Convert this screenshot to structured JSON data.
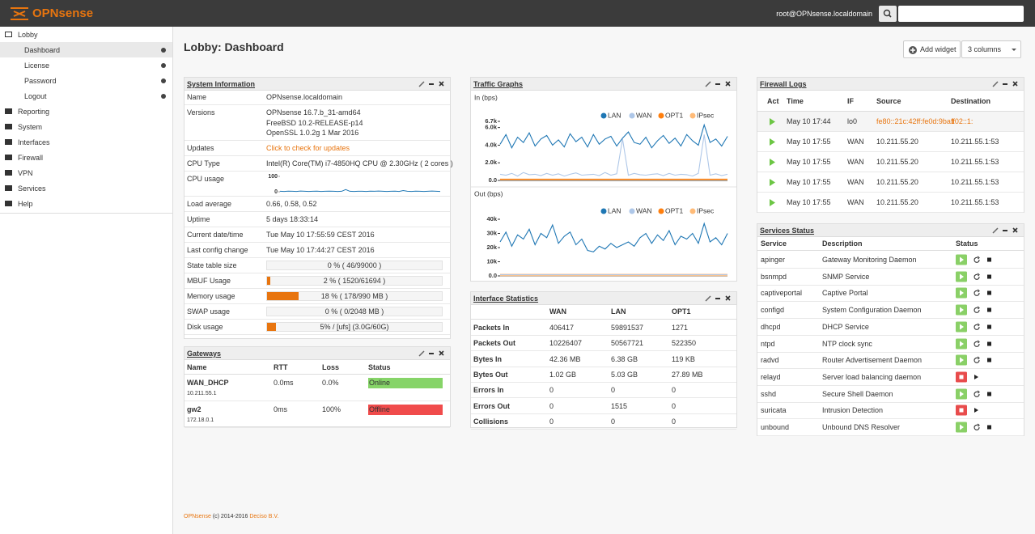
{
  "header": {
    "logo": "OPNsense",
    "user": "root@OPNsense.localdomain"
  },
  "sidebar": {
    "sections": [
      {
        "label": "Lobby",
        "items": [
          "Dashboard",
          "License",
          "Password",
          "Logout"
        ],
        "active": 0
      },
      {
        "label": "Reporting"
      },
      {
        "label": "System"
      },
      {
        "label": "Interfaces"
      },
      {
        "label": "Firewall"
      },
      {
        "label": "VPN"
      },
      {
        "label": "Services"
      },
      {
        "label": "Help"
      }
    ]
  },
  "page": {
    "title": "Lobby: Dashboard",
    "add_widget": "Add widget",
    "columns": "3 columns"
  },
  "system_information": {
    "title": "System Information",
    "rows": [
      {
        "label": "Name",
        "value": "OPNsense.localdomain"
      },
      {
        "label": "Versions",
        "value": [
          "OPNsense 16.7.b_31-amd64",
          "FreeBSD 10.2-RELEASE-p14",
          "OpenSSL 1.0.2g 1 Mar 2016"
        ]
      },
      {
        "label": "Updates",
        "value": "Click to check for updates",
        "link": true
      },
      {
        "label": "CPU Type",
        "value": "Intel(R) Core(TM) i7-4850HQ CPU @ 2.30GHz ( 2 cores )"
      },
      {
        "label": "CPU usage",
        "chart": {
          "ylim": [
            0,
            100
          ],
          "yticks": [
            0,
            100
          ],
          "values": [
            3,
            2,
            4,
            3,
            2,
            5,
            3,
            2,
            3,
            4,
            2,
            3,
            4,
            3,
            2,
            3,
            14,
            3,
            2,
            3,
            3,
            2,
            4,
            3,
            5,
            3,
            2,
            3,
            4,
            2,
            8,
            3,
            2,
            4,
            3,
            2,
            3,
            5,
            3,
            2
          ]
        }
      },
      {
        "label": "Load average",
        "value": "0.66, 0.58, 0.52"
      },
      {
        "label": "Uptime",
        "value": "5 days 18:33:14"
      },
      {
        "label": "Current date/time",
        "value": "Tue May 10 17:55:59 CEST 2016"
      },
      {
        "label": "Last config change",
        "value": "Tue May 10 17:44:27 CEST 2016"
      },
      {
        "label": "State table size",
        "meter": {
          "value": 0,
          "label": "0 % ( 46/99000 )"
        }
      },
      {
        "label": "MBUF Usage",
        "meter": {
          "value": 2,
          "label": "2 % ( 1520/61694 )"
        }
      },
      {
        "label": "Memory usage",
        "meter": {
          "value": 18,
          "label": "18 % ( 178/990 MB )"
        }
      },
      {
        "label": "SWAP usage",
        "meter": {
          "value": 0,
          "label": "0 % ( 0/2048 MB )"
        }
      },
      {
        "label": "Disk usage",
        "meter": {
          "value": 5,
          "label": "5% / [ufs] (3.0G/60G)"
        }
      }
    ]
  },
  "gateways": {
    "title": "Gateways",
    "headers": [
      "Name",
      "RTT",
      "Loss",
      "Status"
    ],
    "rows": [
      {
        "name": "WAN_DHCP",
        "address": "10.211.55.1",
        "rtt": "0.0ms",
        "loss": "0.0%",
        "status": "Online",
        "color": "#86d468"
      },
      {
        "name": "gw2",
        "address": "172.18.0.1",
        "rtt": "0ms",
        "loss": "100%",
        "status": "Offline",
        "color": "#f04b4b"
      }
    ]
  },
  "traffic_graphs": {
    "title": "Traffic Graphs",
    "charts": [
      {
        "title": "In (bps)",
        "ylim": [
          0,
          6700
        ],
        "yticks": [
          {
            "value": 0,
            "label": "0.0"
          },
          {
            "value": 2000,
            "label": "2.0k"
          },
          {
            "value": 4000,
            "label": "4.0k"
          },
          {
            "value": 6000,
            "label": "6.0k"
          },
          {
            "value": 6700,
            "label": "6.7k"
          }
        ],
        "series": [
          {
            "name": "LAN",
            "color": "#1f77b4",
            "values": [
              4100,
              5200,
              3700,
              4900,
              4300,
              5400,
              3900,
              4700,
              5100,
              4000,
              4600,
              3800,
              5300,
              4400,
              4900,
              3800,
              5200,
              4100,
              4700,
              5000,
              3900,
              4800,
              5500,
              4300,
              4100,
              4900,
              3700,
              4500,
              5100,
              4200,
              4800,
              3900,
              5200,
              4500,
              4000,
              6300,
              4300,
              4700,
              3900,
              5000
            ]
          },
          {
            "name": "WAN",
            "color": "#aec7e8",
            "values": [
              700,
              600,
              800,
              500,
              900,
              650,
              700,
              550,
              800,
              600,
              750,
              500,
              700,
              850,
              600,
              650,
              700,
              550,
              900,
              600,
              750,
              4700,
              600,
              800,
              650,
              600,
              700,
              750,
              550,
              800,
              600,
              700,
              650,
              500,
              800,
              5200,
              600,
              750,
              550,
              700
            ]
          },
          {
            "name": "OPT1",
            "color": "#ff7f0e",
            "values": [
              150,
              150,
              150,
              150,
              150,
              150,
              150,
              150,
              150,
              150,
              150,
              150,
              150,
              150,
              150,
              150,
              150,
              150,
              150,
              150,
              150,
              150,
              150,
              150,
              150,
              150,
              150,
              150,
              150,
              150,
              150,
              150,
              150,
              150,
              150,
              150,
              150,
              150,
              150,
              150
            ]
          },
          {
            "name": "IPsec",
            "color": "#ffbb78",
            "values": [
              60,
              60,
              60,
              60,
              60,
              60,
              60,
              60,
              60,
              60,
              60,
              60,
              60,
              60,
              60,
              60,
              60,
              60,
              60,
              60,
              60,
              60,
              60,
              60,
              60,
              60,
              60,
              60,
              60,
              60,
              60,
              60,
              60,
              60,
              60,
              60,
              60,
              60,
              60,
              60
            ]
          }
        ]
      },
      {
        "title": "Out (bps)",
        "ylim": [
          0,
          40000
        ],
        "yticks": [
          {
            "value": 0,
            "label": "0.0"
          },
          {
            "value": 10000,
            "label": "10k"
          },
          {
            "value": 20000,
            "label": "20k"
          },
          {
            "value": 30000,
            "label": "30k"
          },
          {
            "value": 40000,
            "label": "40k"
          }
        ],
        "series": [
          {
            "name": "LAN",
            "color": "#1f77b4",
            "values": [
              24000,
              31000,
              21000,
              29000,
              26000,
              33000,
              22000,
              30000,
              27000,
              36000,
              23000,
              28000,
              31000,
              22000,
              26000,
              18000,
              17000,
              21000,
              19000,
              23000,
              20000,
              22000,
              24000,
              21000,
              27000,
              30000,
              23000,
              29000,
              25000,
              32000,
              22000,
              28000,
              26000,
              30000,
              23000,
              37000,
              24000,
              27000,
              22000,
              30000
            ]
          },
          {
            "name": "WAN",
            "color": "#aec7e8",
            "values": [
              800,
              800,
              800,
              800,
              800,
              800,
              800,
              800,
              800,
              800,
              800,
              800,
              800,
              800,
              800,
              800,
              800,
              800,
              800,
              800,
              800,
              800,
              800,
              800,
              800,
              800,
              800,
              800,
              800,
              800,
              800,
              800,
              800,
              800,
              800,
              800,
              800,
              800,
              800,
              800
            ]
          },
          {
            "name": "OPT1",
            "color": "#ff7f0e",
            "values": [
              1000,
              1000,
              1000,
              1000,
              1000,
              1000,
              1000,
              1000,
              1000,
              1000,
              1000,
              1000,
              1000,
              1000,
              1000,
              1000,
              1000,
              1000,
              1000,
              1000,
              1000,
              1000,
              1000,
              1000,
              1000,
              1000,
              1000,
              1000,
              1000,
              1000,
              1000,
              1000,
              1000,
              1000,
              1000,
              1000,
              1000,
              1000,
              1000,
              1000
            ]
          },
          {
            "name": "IPsec",
            "color": "#ffbb78",
            "values": [
              200,
              200,
              200,
              200,
              200,
              200,
              200,
              200,
              200,
              200,
              200,
              200,
              200,
              200,
              200,
              200,
              200,
              200,
              200,
              200,
              200,
              200,
              200,
              200,
              200,
              200,
              200,
              200,
              200,
              200,
              200,
              200,
              200,
              200,
              200,
              200,
              200,
              200,
              200,
              200
            ]
          }
        ]
      }
    ]
  },
  "interface_statistics": {
    "title": "Interface Statistics",
    "headers": [
      "WAN",
      "LAN",
      "OPT1"
    ],
    "rows": [
      {
        "label": "Packets In",
        "values": [
          406417,
          59891537,
          1271
        ]
      },
      {
        "label": "Packets Out",
        "values": [
          10226407,
          50567721,
          522350
        ]
      },
      {
        "label": "Bytes In",
        "values": [
          "42.36 MB",
          "6.38 GB",
          "119 KB"
        ]
      },
      {
        "label": "Bytes Out",
        "values": [
          "1.02 GB",
          "5.03 GB",
          "27.89 MB"
        ]
      },
      {
        "label": "Errors In",
        "values": [
          0,
          0,
          0
        ]
      },
      {
        "label": "Errors Out",
        "values": [
          0,
          1515,
          0
        ]
      },
      {
        "label": "Collisions",
        "values": [
          0,
          0,
          0
        ]
      }
    ]
  },
  "firewall_logs": {
    "title": "Firewall Logs",
    "headers": [
      "Act",
      "Time",
      "IF",
      "Source",
      "Destination"
    ],
    "rows": [
      {
        "time": "May 10 17:44",
        "if": "lo0",
        "source": "fe80::21c:42ff:fe0d:9ba1",
        "destination": "ff02::1:",
        "link": true
      },
      {
        "time": "May 10 17:55",
        "if": "WAN",
        "source": "10.211.55.20",
        "destination": "10.211.55.1:53"
      },
      {
        "time": "May 10 17:55",
        "if": "WAN",
        "source": "10.211.55.20",
        "destination": "10.211.55.1:53"
      },
      {
        "time": "May 10 17:55",
        "if": "WAN",
        "source": "10.211.55.20",
        "destination": "10.211.55.1:53"
      },
      {
        "time": "May 10 17:55",
        "if": "WAN",
        "source": "10.211.55.20",
        "destination": "10.211.55.1:53"
      }
    ]
  },
  "services_status": {
    "title": "Services Status",
    "headers": [
      "Service",
      "Description",
      "Status"
    ],
    "rows": [
      {
        "name": "apinger",
        "description": "Gateway Monitoring Daemon",
        "running": true
      },
      {
        "name": "bsnmpd",
        "description": "SNMP Service",
        "running": true
      },
      {
        "name": "captiveportal",
        "description": "Captive Portal",
        "running": true
      },
      {
        "name": "configd",
        "description": "System Configuration Daemon",
        "running": true
      },
      {
        "name": "dhcpd",
        "description": "DHCP Service",
        "running": true
      },
      {
        "name": "ntpd",
        "description": "NTP clock sync",
        "running": true
      },
      {
        "name": "radvd",
        "description": "Router Advertisement Daemon",
        "running": true
      },
      {
        "name": "relayd",
        "description": "Server load balancing daemon",
        "running": false
      },
      {
        "name": "sshd",
        "description": "Secure Shell Daemon",
        "running": true
      },
      {
        "name": "suricata",
        "description": "Intrusion Detection",
        "running": false
      },
      {
        "name": "unbound",
        "description": "Unbound DNS Resolver",
        "running": true
      }
    ]
  },
  "footer": {
    "brand": "OPNsense",
    "text": "(c) 2014-2016",
    "company": "Deciso B.V."
  }
}
